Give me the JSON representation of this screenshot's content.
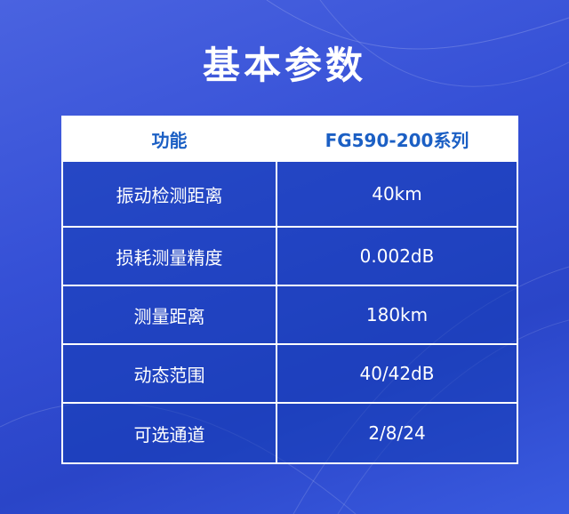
{
  "title": "基本参数",
  "table": {
    "headers": [
      "功能",
      "FG590-200系列"
    ],
    "rows": [
      [
        "振动检测距离",
        "40km"
      ],
      [
        "损耗测量精度",
        "0.002dB"
      ],
      [
        "测量距离",
        "180km"
      ],
      [
        "动态范围",
        "40/42dB"
      ],
      [
        "可选通道",
        "2/8/24"
      ]
    ]
  },
  "colors": {
    "background": "#3550d6",
    "header_text": "#1b5fc4",
    "cell": "#1e48b8"
  }
}
